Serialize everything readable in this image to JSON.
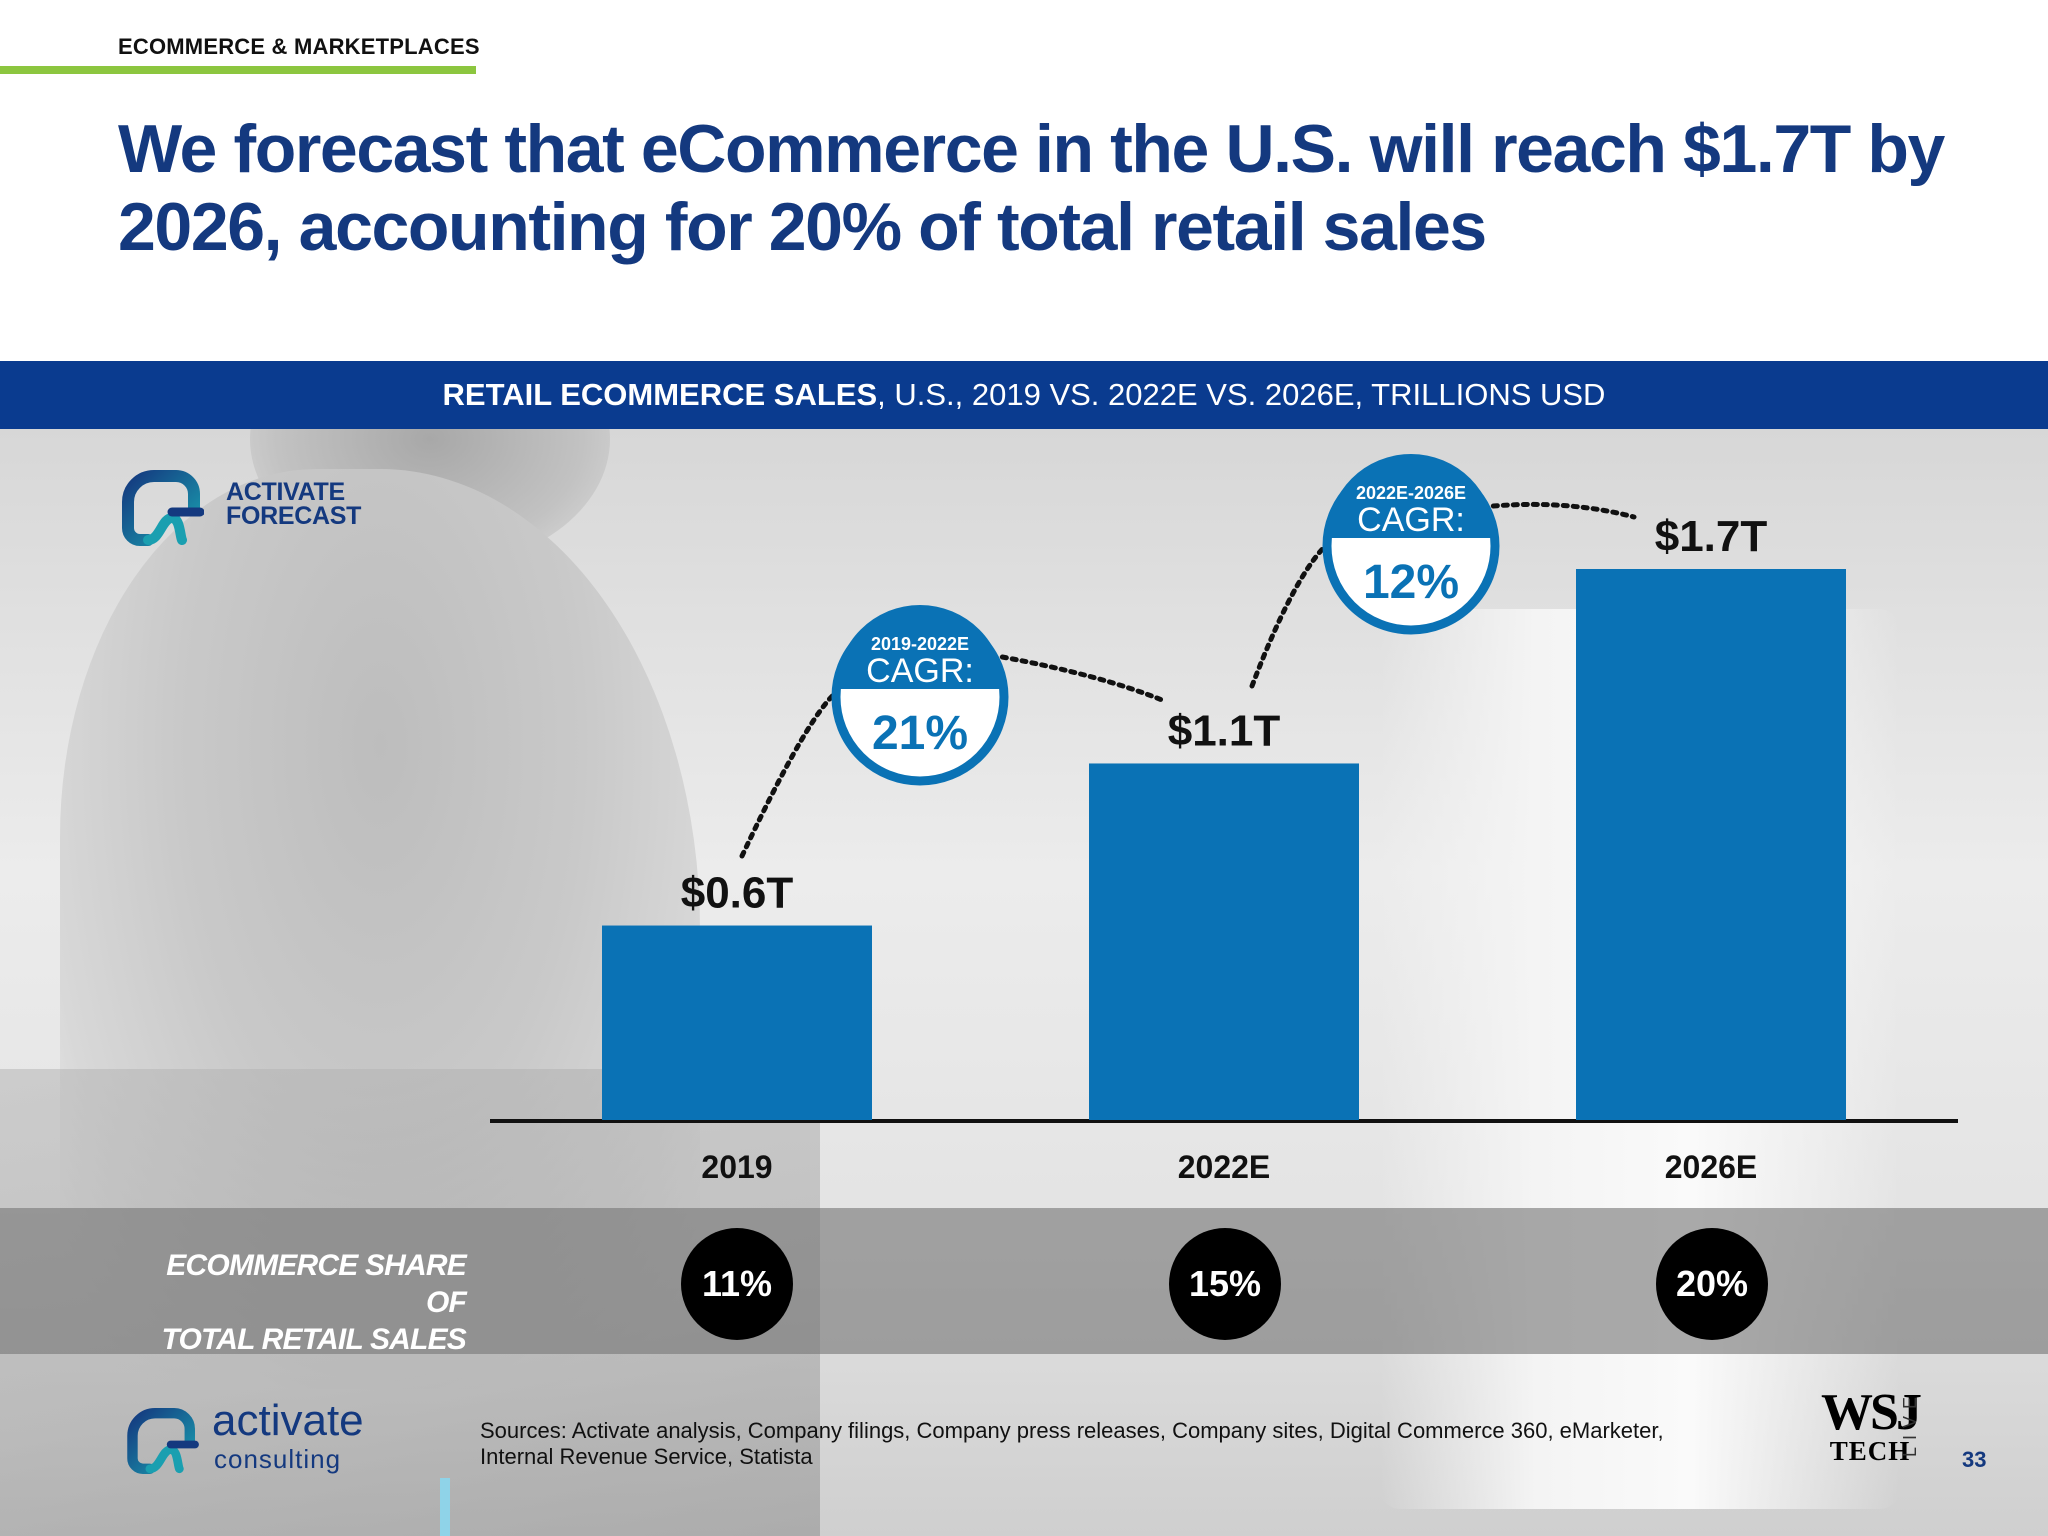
{
  "section": "ECOMMERCE & MARKETPLACES",
  "headline": "We forecast that eCommerce in the U.S. will reach $1.7T by 2026, accounting for 20% of total retail sales",
  "chart_header": {
    "bold": "RETAIL ECOMMERCE SALES",
    "rest": ", U.S., 2019 VS. 2022E VS. 2026E, TRILLIONS USD"
  },
  "forecast_logo": {
    "line1": "ACTIVATE",
    "line2": "FORECAST"
  },
  "chart_data": {
    "type": "bar",
    "title": "RETAIL ECOMMERCE SALES, U.S., 2019 VS. 2022E VS. 2026E, TRILLIONS USD",
    "categories": [
      "2019",
      "2022E",
      "2026E"
    ],
    "values": [
      0.6,
      1.1,
      1.7
    ],
    "data_labels": [
      "$0.6T",
      "$1.1T",
      "$1.7T"
    ],
    "bar_color": "#0a72b5",
    "cagr": [
      {
        "period": "2019-2022E",
        "label": "CAGR:",
        "value": "21%"
      },
      {
        "period": "2022E-2026E",
        "label": "CAGR:",
        "value": "12%"
      }
    ]
  },
  "share": {
    "label_line1": "ECOMMERCE SHARE OF",
    "label_line2": "TOTAL RETAIL SALES",
    "values": [
      "11%",
      "15%",
      "20%"
    ]
  },
  "footer": {
    "brand": "activate",
    "brand_sub": "consulting",
    "sources_line1": "Sources: Activate analysis, Company filings, Company press releases, Company sites, Digital Commerce 360, eMarketer,",
    "sources_line2": "Internal Revenue Service, Statista",
    "wsj_main": "WSJ",
    "wsj_tech": "TECH",
    "wsj_live": "LIVE",
    "page_number": "33"
  },
  "colors": {
    "navy": "#14397f",
    "header_bar": "#0a3b8f",
    "accent_green": "#8cc63f",
    "bar_blue": "#0a72b5",
    "teal": "#1a9fb0"
  }
}
